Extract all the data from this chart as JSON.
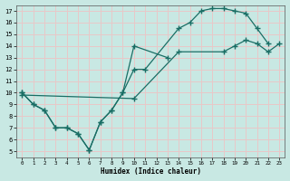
{
  "bg_color": "#c8e8e3",
  "grid_color": "#e8c8c8",
  "line_color": "#1a6e65",
  "xlabel": "Humidex (Indice chaleur)",
  "xlim": [
    -0.5,
    23.5
  ],
  "ylim": [
    4.5,
    17.5
  ],
  "yticks": [
    5,
    6,
    7,
    8,
    9,
    10,
    11,
    12,
    13,
    14,
    15,
    16,
    17
  ],
  "xticks": [
    0,
    1,
    2,
    3,
    4,
    5,
    6,
    7,
    8,
    9,
    10,
    11,
    12,
    13,
    14,
    15,
    16,
    17,
    18,
    19,
    20,
    21,
    22,
    23
  ],
  "line1_x": [
    0,
    1,
    2,
    3,
    4,
    5,
    6,
    7,
    8,
    9,
    10,
    13
  ],
  "line1_y": [
    10,
    9,
    8.5,
    7,
    7,
    6.5,
    5.1,
    7.5,
    8.5,
    10,
    14,
    13
  ],
  "line2_x": [
    0,
    1,
    2,
    3,
    4,
    5,
    6,
    7,
    8,
    9,
    10,
    11,
    14,
    15,
    16,
    17,
    18,
    19,
    20,
    21,
    22
  ],
  "line2_y": [
    10,
    9,
    8.5,
    7,
    7,
    6.5,
    5.1,
    7.5,
    8.5,
    10,
    12,
    12,
    15.5,
    16,
    17,
    17.2,
    17.2,
    17,
    16.8,
    15.5,
    14.2
  ],
  "line3_x": [
    0,
    10,
    14,
    18,
    19,
    20,
    21,
    22,
    23
  ],
  "line3_y": [
    9.8,
    9.5,
    13.5,
    13.5,
    14,
    14.5,
    14.2,
    13.5,
    14.2
  ]
}
